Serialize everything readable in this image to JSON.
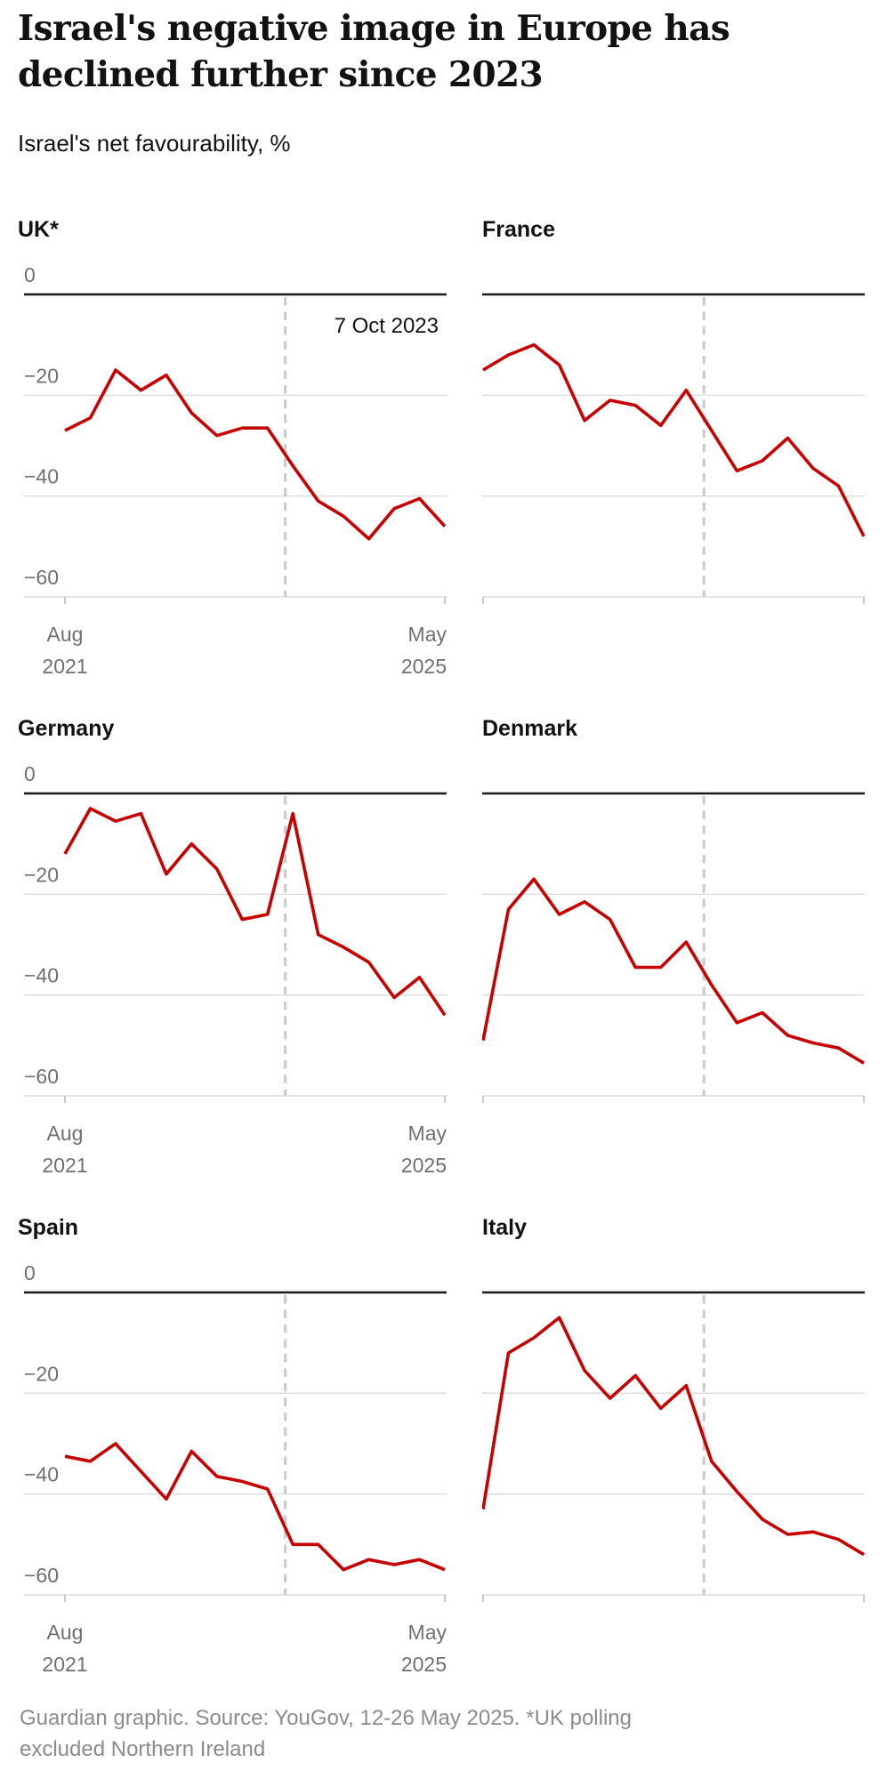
{
  "header": {
    "title_lines": [
      "Israel's negative image in Europe has",
      "declined further since 2023"
    ],
    "subtitle": "Israel's net favourability, %"
  },
  "footer": {
    "text": "Guardian graphic. Source: YouGov, 12-26 May 2025. *UK polling excluded Northern Ireland"
  },
  "chart_data": {
    "type": "line",
    "title": "Israel's net favourability, %",
    "x_axis": {
      "start_label": [
        "Aug",
        "2021"
      ],
      "end_label": [
        "May",
        "2025"
      ]
    },
    "ylim": [
      -60,
      0
    ],
    "y_ticks": [
      {
        "value": 0,
        "label": "0"
      },
      {
        "value": -20,
        "label": "−20"
      },
      {
        "value": -40,
        "label": "−40"
      },
      {
        "value": -60,
        "label": "−60"
      }
    ],
    "grid": "horizontal",
    "event_line": {
      "label": "7 Oct 2023",
      "x_fraction": 0.58
    },
    "series_color": "#c70000",
    "n_points": 16,
    "panels": [
      {
        "title": "UK*",
        "show_y_labels": true,
        "show_x_labels": true,
        "show_event_label": true,
        "values": [
          -27,
          -24.5,
          -15,
          -19,
          -16,
          -23.5,
          -28,
          -26.5,
          -26.5,
          -34,
          -41,
          -44,
          -48.5,
          -42.5,
          -40.5,
          -46
        ]
      },
      {
        "title": "France",
        "show_y_labels": false,
        "show_x_labels": false,
        "show_event_label": false,
        "values": [
          -15,
          -12,
          -10,
          -14,
          -25,
          -21,
          -22,
          -26,
          -19,
          -27,
          -35,
          -33,
          -28.5,
          -34.5,
          -38,
          -48
        ]
      },
      {
        "title": "Germany",
        "show_y_labels": true,
        "show_x_labels": true,
        "show_event_label": false,
        "values": [
          -12,
          -3,
          -5.5,
          -4,
          -16,
          -10,
          -15,
          -25,
          -24,
          -4,
          -28,
          -30.5,
          -33.5,
          -40.5,
          -36.5,
          -44
        ]
      },
      {
        "title": "Denmark",
        "show_y_labels": false,
        "show_x_labels": false,
        "show_event_label": false,
        "values": [
          -49,
          -23,
          -17,
          -24,
          -21.5,
          -25,
          -34.5,
          -34.5,
          -29.5,
          -38,
          -45.5,
          -43.5,
          -48,
          -49.5,
          -50.5,
          -53.5
        ]
      },
      {
        "title": "Spain",
        "show_y_labels": true,
        "show_x_labels": true,
        "show_event_label": false,
        "values": [
          -32.5,
          -33.5,
          -30,
          -35.5,
          -41,
          -31.5,
          -36.5,
          -37.5,
          -39,
          -50,
          -50,
          -55,
          -53,
          -54,
          -53,
          -55
        ]
      },
      {
        "title": "Italy",
        "show_y_labels": false,
        "show_x_labels": false,
        "show_event_label": false,
        "values": [
          -43,
          -12,
          -9,
          -5,
          -15.5,
          -21,
          -16.5,
          -23,
          -18.5,
          -33.5,
          -39.5,
          -45,
          -48,
          -47.5,
          -49,
          -52
        ]
      }
    ]
  }
}
